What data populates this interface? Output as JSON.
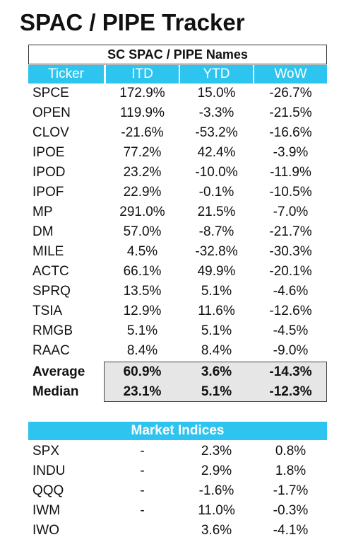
{
  "title": "SPAC / PIPE Tracker",
  "spac_table": {
    "caption": "SC SPAC / PIPE Names",
    "headers": [
      "Ticker",
      "ITD",
      "YTD",
      "WoW"
    ],
    "rows": [
      [
        "SPCE",
        "172.9%",
        "15.0%",
        "-26.7%"
      ],
      [
        "OPEN",
        "119.9%",
        "-3.3%",
        "-21.5%"
      ],
      [
        "CLOV",
        "-21.6%",
        "-53.2%",
        "-16.6%"
      ],
      [
        "IPOE",
        "77.2%",
        "42.4%",
        "-3.9%"
      ],
      [
        "IPOD",
        "23.2%",
        "-10.0%",
        "-11.9%"
      ],
      [
        "IPOF",
        "22.9%",
        "-0.1%",
        "-10.5%"
      ],
      [
        "MP",
        "291.0%",
        "21.5%",
        "-7.0%"
      ],
      [
        "DM",
        "57.0%",
        "-8.7%",
        "-21.7%"
      ],
      [
        "MILE",
        "4.5%",
        "-32.8%",
        "-30.3%"
      ],
      [
        "ACTC",
        "66.1%",
        "49.9%",
        "-20.1%"
      ],
      [
        "SPRQ",
        "13.5%",
        "5.1%",
        "-4.6%"
      ],
      [
        "TSIA",
        "12.9%",
        "11.6%",
        "-12.6%"
      ],
      [
        "RMGB",
        "5.1%",
        "5.1%",
        "-4.5%"
      ],
      [
        "RAAC",
        "8.4%",
        "8.4%",
        "-9.0%"
      ]
    ],
    "summary": [
      [
        "Average",
        "60.9%",
        "3.6%",
        "-14.3%"
      ],
      [
        "Median",
        "23.1%",
        "5.1%",
        "-12.3%"
      ]
    ]
  },
  "indices_table": {
    "caption": "Market Indices",
    "rows": [
      [
        "SPX",
        "-",
        "2.3%",
        "0.8%"
      ],
      [
        "INDU",
        "-",
        "2.9%",
        "1.8%"
      ],
      [
        "QQQ",
        "-",
        "-1.6%",
        "-1.7%"
      ],
      [
        "IWM",
        "-",
        "11.0%",
        "-0.3%"
      ],
      [
        "IWO",
        null,
        "3.6%",
        "-4.1%"
      ]
    ]
  }
}
